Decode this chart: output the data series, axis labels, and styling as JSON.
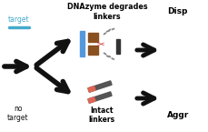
{
  "bg_color": "#ffffff",
  "title_top": "DNAzyme degrades\nlinkers",
  "label_target": "target",
  "label_no_target": "no\ntarget",
  "label_intact": "Intact\nlinkers",
  "label_disp": "Disp",
  "label_aggr": "Aggr",
  "blue_bar_color": "#5599dd",
  "gold_np_color": "#8B5020",
  "linker_red_color": "#dd6655",
  "linker_dark_color": "#555555",
  "scissors_color": "#cc3333",
  "arrow_color": "#111111",
  "cyan_color": "#44aacc",
  "gray_color": "#888888"
}
